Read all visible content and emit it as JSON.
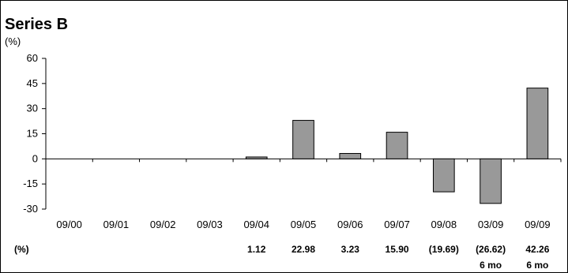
{
  "chart_data": {
    "type": "bar",
    "title": "Series B",
    "ylabel": "(%)",
    "ylim": [
      -30,
      60
    ],
    "yticks": [
      60,
      45,
      30,
      15,
      0,
      -15,
      -30
    ],
    "categories": [
      "09/00",
      "09/01",
      "09/02",
      "09/03",
      "09/04",
      "09/05",
      "09/06",
      "09/07",
      "09/08",
      "03/09",
      "09/09"
    ],
    "values": [
      null,
      null,
      null,
      null,
      1.12,
      22.98,
      3.23,
      15.9,
      -19.69,
      -26.62,
      42.26
    ],
    "value_row_label": "(%)",
    "value_labels": [
      "",
      "",
      "",
      "",
      "1.12",
      "22.98",
      "3.23",
      "15.90",
      "(19.69)",
      "(26.62)",
      "42.26"
    ],
    "period_labels": [
      "",
      "",
      "",
      "",
      "",
      "",
      "",
      "",
      "",
      "6 mo",
      "6 mo"
    ],
    "bar_color": "#999999",
    "grid": false,
    "legend": "none"
  }
}
